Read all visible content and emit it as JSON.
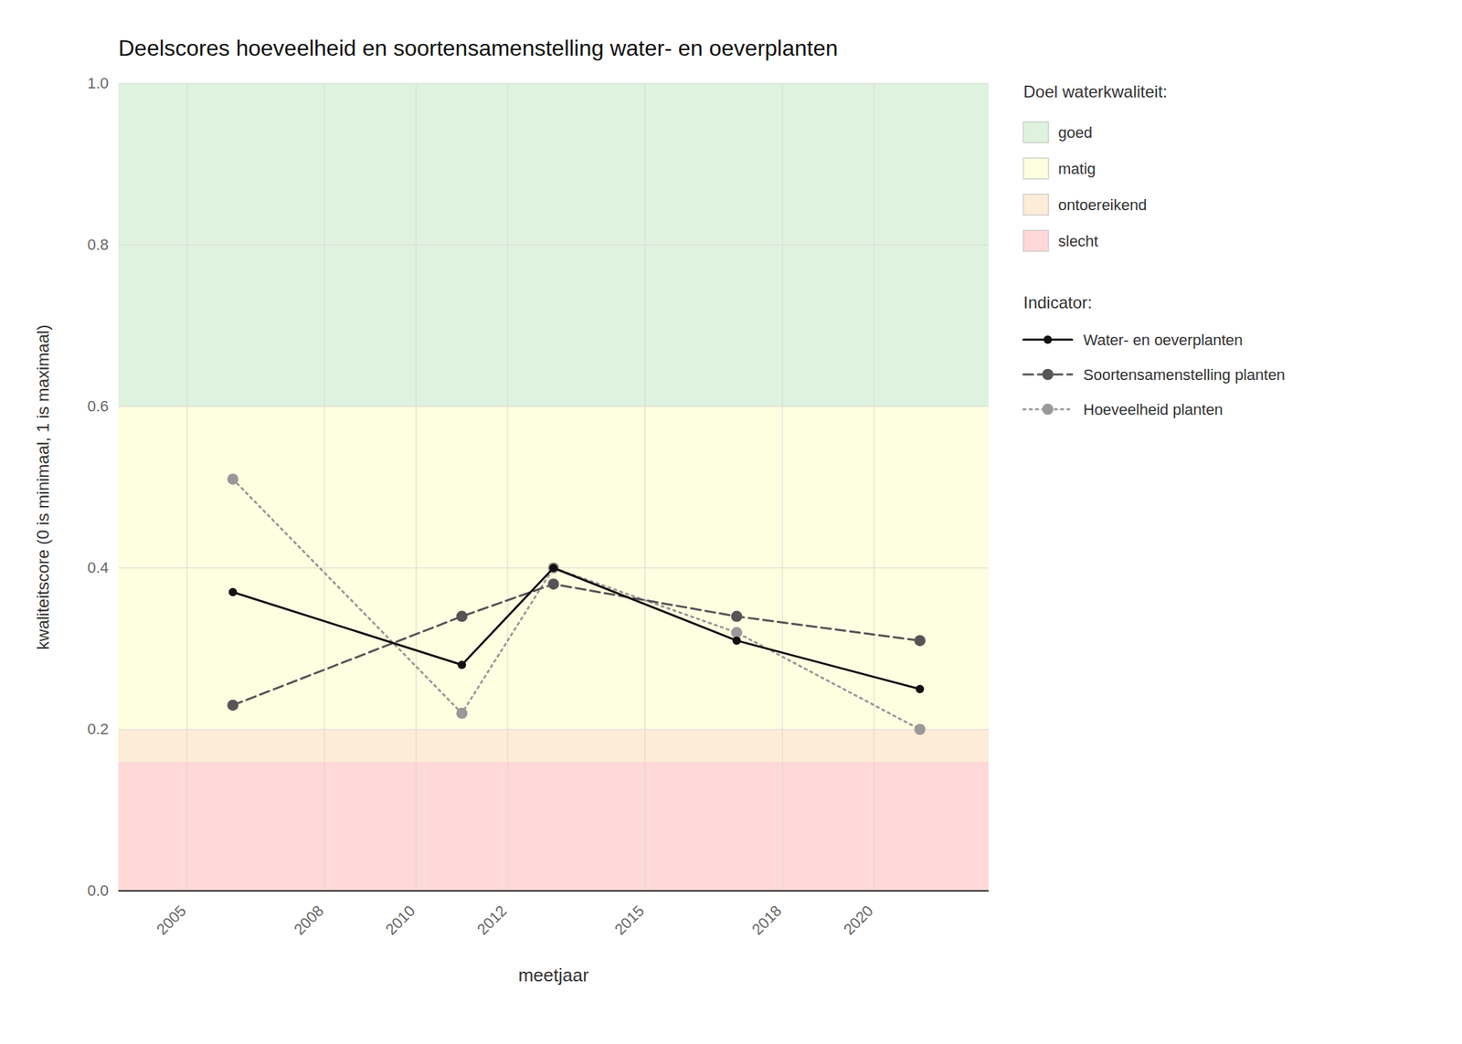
{
  "chart_data": {
    "type": "line",
    "title": "Deelscores hoeveelheid en soortensamenstelling water- en oeverplanten",
    "x_label": "meetjaar",
    "y_label": "kwaliteitscore (0 is minimaal, 1 is maximaal)",
    "xlim": [
      2003.5,
      2022.5
    ],
    "ylim": [
      0.0,
      1.0
    ],
    "xticks": [
      2005,
      2008,
      2010,
      2012,
      2015,
      2018,
      2020
    ],
    "yticks": [
      {
        "value": 0.0,
        "label": "0.0"
      },
      0.2,
      0.4,
      0.6,
      0.8,
      {
        "value": 1.0,
        "label": "1.0"
      }
    ],
    "grid": true,
    "legend": "right",
    "zone_legend_title": "Doel waterkwaliteit:",
    "zones": [
      {
        "label": "goed",
        "ymin": 0.6,
        "ymax": 1.0,
        "color": "#dff2df"
      },
      {
        "label": "matig",
        "ymin": 0.2,
        "ymax": 0.6,
        "color": "#fefee0"
      },
      {
        "label": "ontoereikend",
        "ymin": 0.16,
        "ymax": 0.2,
        "color": "#fdecd8"
      },
      {
        "label": "slecht",
        "ymin": 0.0,
        "ymax": 0.16,
        "color": "#ffd8d8"
      }
    ],
    "legend_title": "Indicator:",
    "x": [
      2006,
      2011,
      2013,
      2017,
      2021
    ],
    "series": [
      {
        "name": "Water- en oeverplanten",
        "color": "#111111",
        "line_style": "solid",
        "marker": "circle",
        "values": [
          0.37,
          0.28,
          0.4,
          0.31,
          0.25
        ]
      },
      {
        "name": "Soortensamenstelling planten",
        "color": "#555555",
        "line_style": "dashed",
        "marker": "circle",
        "values": [
          0.23,
          0.34,
          0.38,
          0.34,
          0.31
        ]
      },
      {
        "name": "Hoeveelheid planten",
        "color": "#999999",
        "line_style": "dotted",
        "marker": "circle",
        "values": [
          0.51,
          0.22,
          0.4,
          0.32,
          0.2
        ]
      }
    ]
  }
}
